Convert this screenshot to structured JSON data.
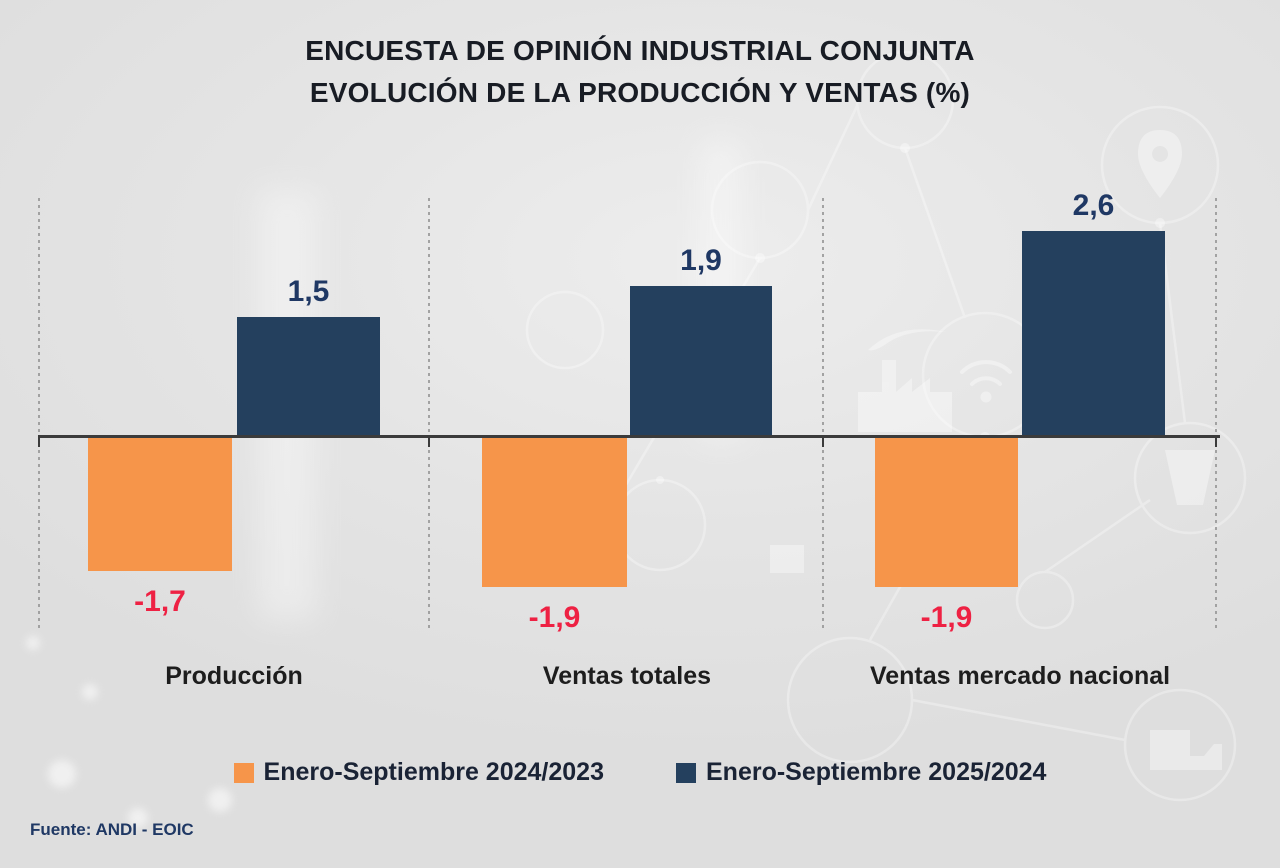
{
  "title": {
    "line1": "ENCUESTA DE OPINIÓN INDUSTRIAL CONJUNTA",
    "line2": "EVOLUCIÓN DE LA PRODUCCIÓN Y VENTAS (%)"
  },
  "source": "Fuente: ANDI - EOIC",
  "colors": {
    "background": "#E4E4E4",
    "axis": "#3B3B3B",
    "gridline": "#969696",
    "title_text": "#181C24",
    "category_text": "#1D1D1D",
    "legend_text": "#1A2335",
    "source_text": "#1F3864"
  },
  "chart_data": {
    "type": "bar",
    "title": "ENCUESTA DE OPINIÓN INDUSTRIAL CONJUNTA — EVOLUCIÓN DE LA PRODUCCIÓN Y VENTAS (%)",
    "categories": [
      "Producción",
      "Ventas totales",
      "Ventas mercado nacional"
    ],
    "series": [
      {
        "name": "Enero-Septiembre 2024/2023",
        "color": "#F6954A",
        "values": [
          -1.7,
          -1.9,
          -1.9
        ],
        "labels": [
          "-1,7",
          "-1,9",
          "-1,9"
        ]
      },
      {
        "name": "Enero-Septiembre 2025/2024",
        "color": "#24405E",
        "values": [
          1.5,
          1.9,
          2.6
        ],
        "labels": [
          "1,5",
          "1,9",
          "2,6"
        ]
      }
    ],
    "ylim": [
      -3,
      3
    ],
    "baseline": 0,
    "grid": "vertical dashed category separators",
    "legend_position": "bottom",
    "positive_label_color": "#1F3864",
    "negative_label_color": "#EE2143"
  }
}
